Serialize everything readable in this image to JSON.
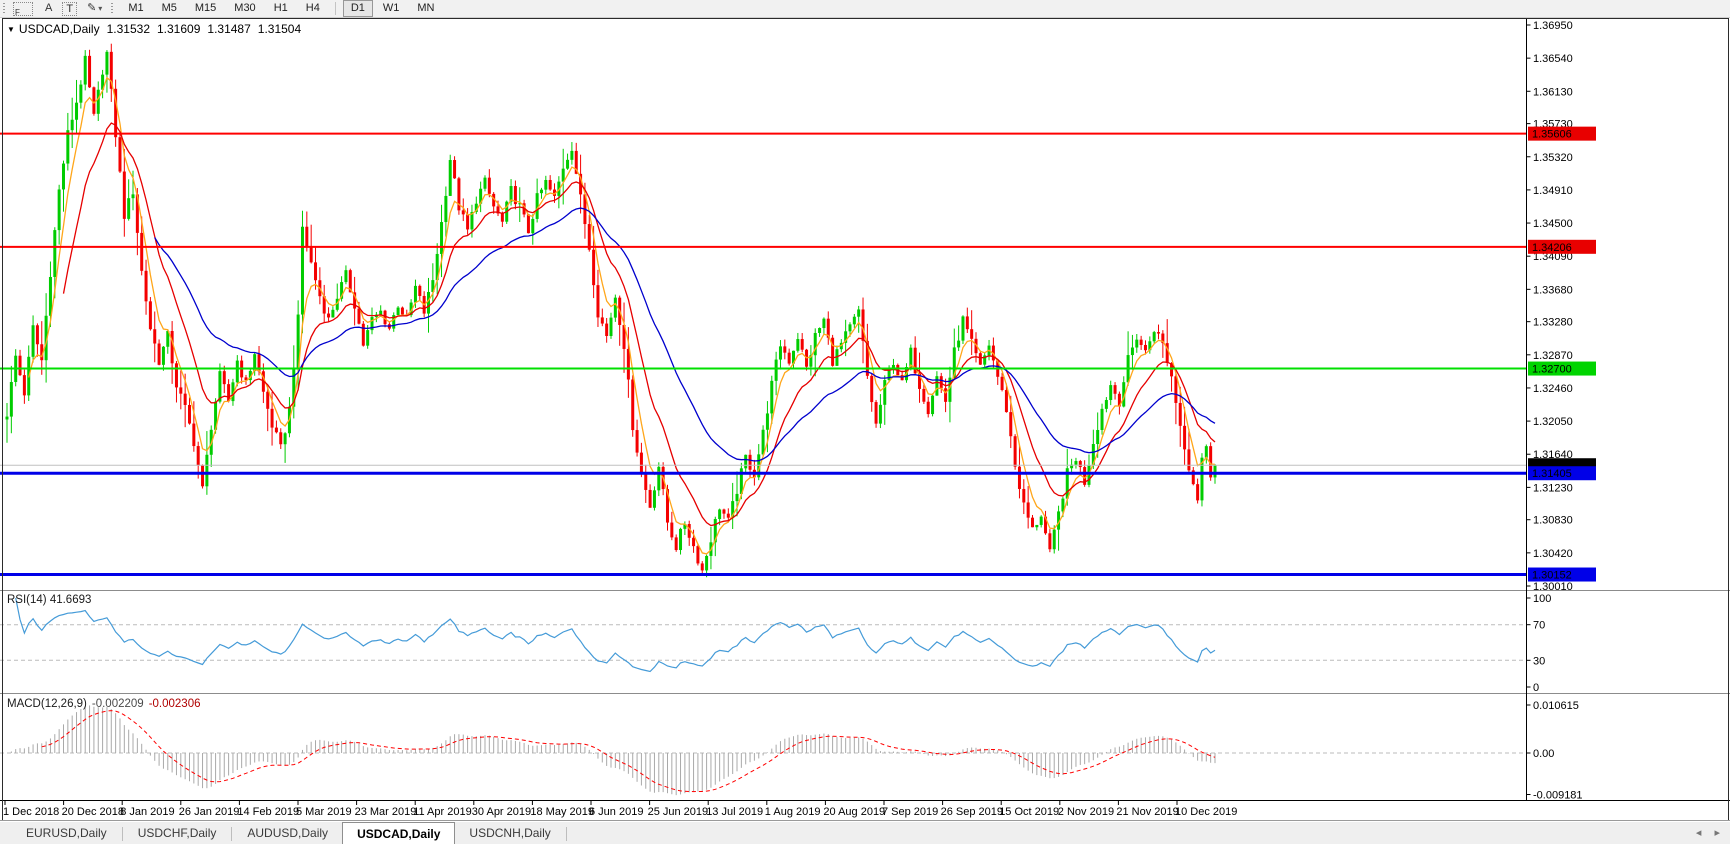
{
  "toolbar": {
    "tools": [
      {
        "label": "F"
      },
      {
        "glyph": "A"
      },
      {
        "glyph": "T"
      },
      {
        "glyph": "✎",
        "caret": "▾"
      }
    ],
    "timeframes": [
      {
        "label": "M1",
        "active": false
      },
      {
        "label": "M5",
        "active": false
      },
      {
        "label": "M15",
        "active": false
      },
      {
        "label": "M30",
        "active": false
      },
      {
        "label": "H1",
        "active": false
      },
      {
        "label": "H4",
        "active": false
      },
      {
        "label": "D1",
        "active": true
      },
      {
        "label": "W1",
        "active": false
      },
      {
        "label": "MN",
        "active": false
      }
    ]
  },
  "chart_data": {
    "type": "candlestick",
    "title": {
      "dropdown_glyph": "▼",
      "symbol": "USDCAD,Daily",
      "open": "1.31532",
      "high": "1.31609",
      "low": "1.31487",
      "close": "1.31504"
    },
    "colors": {
      "bull": "#00CC00",
      "bear": "#F40000",
      "ma_fast": "#FFA61A",
      "ma_mid": "#E60000",
      "ma_slow": "#0000CD",
      "rsi_line": "#459BD8",
      "dashed_level": "#BBBBBB",
      "hist": "#A9A9A9",
      "axis_line": "#000000"
    },
    "price_axis": {
      "top_price": 1.3695,
      "bottom_price": 1.3001,
      "labels": [
        "1.36950",
        "1.36540",
        "1.36130",
        "1.35730",
        "1.35320",
        "1.34910",
        "1.34500",
        "1.34090",
        "1.33680",
        "1.33280",
        "1.32870",
        "1.32460",
        "1.32050",
        "1.31640",
        "1.31230",
        "1.30830",
        "1.30420",
        "1.30010"
      ]
    },
    "levels": [
      {
        "value": "1.35606",
        "price": 1.35606,
        "bg": "#E80000",
        "fg": "#FFFFFF",
        "line_color": "#FF0000",
        "line_width": 2
      },
      {
        "value": "1.34206",
        "price": 1.34206,
        "bg": "#E80000",
        "fg": "#FFFFFF",
        "line_color": "#FF0000",
        "line_width": 2
      },
      {
        "value": "1.32700",
        "price": 1.327,
        "bg": "#00D400",
        "fg": "#FFFFFF",
        "line_color": "#00E000",
        "line_width": 2
      },
      {
        "value": "1.31504",
        "price": 1.31504,
        "bg": "#000000",
        "fg": "#FFFFFF",
        "line_color": "#C0C0C0",
        "line_width": 1
      },
      {
        "value": "1.31405",
        "price": 1.31405,
        "bg": "#0000E8",
        "fg": "#FFFFFF",
        "line_color": "#0000E8",
        "line_width": 3
      },
      {
        "value": "1.30152",
        "price": 1.30152,
        "bg": "#0000E8",
        "fg": "#FFFFFF",
        "line_color": "#0000E8",
        "line_width": 3
      }
    ],
    "candles": {
      "count": 279,
      "last_close": 1.31504,
      "anchors": [
        [
          0,
          1.3215
        ],
        [
          2,
          1.3285
        ],
        [
          4,
          1.324
        ],
        [
          6,
          1.332
        ],
        [
          8,
          1.328
        ],
        [
          10,
          1.339
        ],
        [
          12,
          1.349
        ],
        [
          14,
          1.356
        ],
        [
          16,
          1.36
        ],
        [
          18,
          1.365
        ],
        [
          20,
          1.358
        ],
        [
          22,
          1.364
        ],
        [
          23,
          1.366
        ],
        [
          25,
          1.356
        ],
        [
          27,
          1.346
        ],
        [
          29,
          1.349
        ],
        [
          31,
          1.339
        ],
        [
          33,
          1.332
        ],
        [
          35,
          1.328
        ],
        [
          37,
          1.331
        ],
        [
          39,
          1.325
        ],
        [
          41,
          1.322
        ],
        [
          43,
          1.318
        ],
        [
          45,
          1.312
        ],
        [
          47,
          1.32
        ],
        [
          49,
          1.326
        ],
        [
          51,
          1.323
        ],
        [
          53,
          1.328
        ],
        [
          55,
          1.325
        ],
        [
          57,
          1.329
        ],
        [
          59,
          1.324
        ],
        [
          61,
          1.32
        ],
        [
          63,
          1.317
        ],
        [
          65,
          1.322
        ],
        [
          67,
          1.333
        ],
        [
          68,
          1.3445
        ],
        [
          70,
          1.34
        ],
        [
          72,
          1.336
        ],
        [
          74,
          1.333
        ],
        [
          76,
          1.336
        ],
        [
          78,
          1.3385
        ],
        [
          80,
          1.335
        ],
        [
          82,
          1.33
        ],
        [
          84,
          1.333
        ],
        [
          86,
          1.334
        ],
        [
          88,
          1.332
        ],
        [
          90,
          1.335
        ],
        [
          92,
          1.333
        ],
        [
          94,
          1.337
        ],
        [
          96,
          1.334
        ],
        [
          98,
          1.338
        ],
        [
          100,
          1.345
        ],
        [
          102,
          1.353
        ],
        [
          104,
          1.347
        ],
        [
          106,
          1.344
        ],
        [
          108,
          1.348
        ],
        [
          110,
          1.35
        ],
        [
          112,
          1.347
        ],
        [
          114,
          1.345
        ],
        [
          116,
          1.349
        ],
        [
          118,
          1.347
        ],
        [
          120,
          1.344
        ],
        [
          122,
          1.348
        ],
        [
          124,
          1.35
        ],
        [
          126,
          1.348
        ],
        [
          128,
          1.352
        ],
        [
          130,
          1.3545
        ],
        [
          132,
          1.348
        ],
        [
          134,
          1.342
        ],
        [
          136,
          1.334
        ],
        [
          138,
          1.331
        ],
        [
          140,
          1.336
        ],
        [
          142,
          1.33
        ],
        [
          144,
          1.32
        ],
        [
          146,
          1.314
        ],
        [
          148,
          1.31
        ],
        [
          150,
          1.315
        ],
        [
          152,
          1.308
        ],
        [
          154,
          1.305
        ],
        [
          156,
          1.308
        ],
        [
          158,
          1.305
        ],
        [
          160,
          1.302
        ],
        [
          162,
          1.306
        ],
        [
          164,
          1.31
        ],
        [
          166,
          1.308
        ],
        [
          168,
          1.312
        ],
        [
          170,
          1.316
        ],
        [
          172,
          1.314
        ],
        [
          174,
          1.319
        ],
        [
          176,
          1.325
        ],
        [
          178,
          1.33
        ],
        [
          180,
          1.328
        ],
        [
          182,
          1.331
        ],
        [
          184,
          1.327
        ],
        [
          186,
          1.331
        ],
        [
          188,
          1.333
        ],
        [
          190,
          1.328
        ],
        [
          192,
          1.33
        ],
        [
          194,
          1.332
        ],
        [
          196,
          1.334
        ],
        [
          198,
          1.326
        ],
        [
          200,
          1.32
        ],
        [
          202,
          1.325
        ],
        [
          204,
          1.328
        ],
        [
          206,
          1.325
        ],
        [
          208,
          1.329
        ],
        [
          210,
          1.325
        ],
        [
          212,
          1.322
        ],
        [
          214,
          1.326
        ],
        [
          216,
          1.323
        ],
        [
          218,
          1.329
        ],
        [
          220,
          1.333
        ],
        [
          222,
          1.33
        ],
        [
          224,
          1.327
        ],
        [
          226,
          1.33
        ],
        [
          228,
          1.326
        ],
        [
          230,
          1.322
        ],
        [
          232,
          1.315
        ],
        [
          234,
          1.31
        ],
        [
          236,
          1.307
        ],
        [
          238,
          1.309
        ],
        [
          240,
          1.304
        ],
        [
          242,
          1.309
        ],
        [
          244,
          1.314
        ],
        [
          246,
          1.316
        ],
        [
          248,
          1.313
        ],
        [
          250,
          1.318
        ],
        [
          252,
          1.322
        ],
        [
          254,
          1.325
        ],
        [
          256,
          1.323
        ],
        [
          258,
          1.328
        ],
        [
          260,
          1.331
        ],
        [
          262,
          1.329
        ],
        [
          264,
          1.332
        ],
        [
          266,
          1.33
        ],
        [
          268,
          1.326
        ],
        [
          270,
          1.32
        ],
        [
          272,
          1.315
        ],
        [
          274,
          1.311
        ],
        [
          275,
          1.316
        ],
        [
          276,
          1.317
        ],
        [
          277,
          1.314
        ],
        [
          278,
          1.31504
        ]
      ]
    },
    "moving_averages": [
      {
        "period": 5,
        "color": "#FFA61A"
      },
      {
        "period": 13,
        "color": "#E60000"
      },
      {
        "period": 34,
        "color": "#0000CD"
      }
    ],
    "rsi": {
      "label": "RSI(14) 41.6693",
      "period": 14,
      "levels": [
        70,
        30
      ],
      "axis_labels": [
        {
          "text": "100",
          "value": 100
        },
        {
          "text": "70",
          "value": 70
        },
        {
          "text": "30",
          "value": 30
        },
        {
          "text": "0",
          "value": 0
        }
      ]
    },
    "macd": {
      "label": "MACD(12,26,9)",
      "value_main": "-0.002209",
      "value_signal": "-0.002306",
      "fast": 12,
      "slow": 26,
      "signal": 9,
      "axis_labels": [
        {
          "text": "0.010615",
          "value": 0.010615
        },
        {
          "text": "0.00",
          "value": 0
        },
        {
          "text": "-0.009181",
          "value": -0.009181
        }
      ]
    },
    "x_axis": {
      "labels": [
        "1 Dec 2018",
        "20 Dec 2018",
        "8 Jan 2019",
        "26 Jan 2019",
        "14 Feb 2019",
        "5 Mar 2019",
        "23 Mar 2019",
        "11 Apr 2019",
        "30 Apr 2019",
        "18 May 2019",
        "6 Jun 2019",
        "25 Jun 2019",
        "13 Jul 2019",
        "1 Aug 2019",
        "20 Aug 2019",
        "7 Sep 2019",
        "26 Sep 2019",
        "15 Oct 2019",
        "2 Nov 2019",
        "21 Nov 2019",
        "10 Dec 2019"
      ]
    }
  },
  "tab_bar": {
    "tabs": [
      {
        "label": "EURUSD,Daily",
        "active": false
      },
      {
        "label": "USDCHF,Daily",
        "active": false
      },
      {
        "label": "AUDUSD,Daily",
        "active": false
      },
      {
        "label": "USDCAD,Daily",
        "active": true
      },
      {
        "label": "USDCNH,Daily",
        "active": false
      }
    ],
    "scroll_left_glyph": "◂",
    "scroll_right_glyph": "▸"
  }
}
